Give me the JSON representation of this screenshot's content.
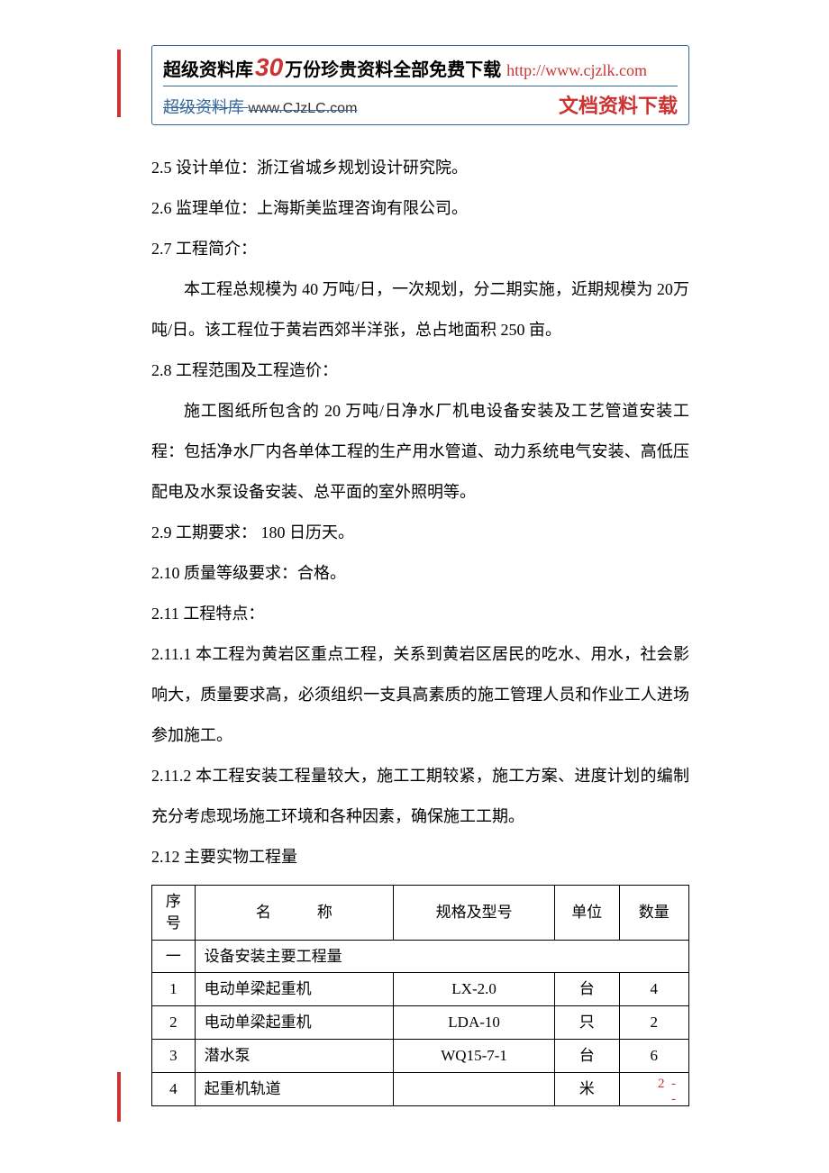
{
  "header": {
    "brand": "超级资料库",
    "big_number": "30",
    "line1_rest": "万份珍贵资料全部免费下载",
    "link": "http://www.cjzlk.com",
    "line2_left_brand": "超级资料库",
    "line2_left_url": "www.CJzLC.com",
    "line2_right": "文档资料下载"
  },
  "body": {
    "p1": "2.5 设计单位：浙江省城乡规划设计研究院。",
    "p2": "2.6 监理单位：上海斯美监理咨询有限公司。",
    "p3": "2.7 工程简介：",
    "p4": "本工程总规模为 40 万吨/日，一次规划，分二期实施，近期规模为 20万吨/日。该工程位于黄岩西郊半洋张，总占地面积 250 亩。",
    "p5": "2.8 工程范围及工程造价：",
    "p6": "施工图纸所包含的 20 万吨/日净水厂机电设备安装及工艺管道安装工程：包括净水厂内各单体工程的生产用水管道、动力系统电气安装、高低压配电及水泵设备安装、总平面的室外照明等。",
    "p7": "2.9 工期要求：  180 日历天。",
    "p8": "2.10 质量等级要求：合格。",
    "p9": "2.11 工程特点：",
    "p10": "2.11.1 本工程为黄岩区重点工程，关系到黄岩区居民的吃水、用水，社会影响大，质量要求高，必须组织一支具高素质的施工管理人员和作业工人进场参加施工。",
    "p11": "2.11.2 本工程安装工程量较大，施工工期较紧，施工方案、进度计划的编制充分考虑现场施工环境和各种因素，确保施工工期。",
    "p12": "2.12 主要实物工程量"
  },
  "table": {
    "headers": {
      "seq": "序号",
      "name": "名",
      "name2": "称",
      "spec": "规格及型号",
      "unit": "单位",
      "qty": "数量"
    },
    "section_row_seq": "一",
    "section_row_label": "设备安装主要工程量",
    "rows": [
      {
        "seq": "1",
        "name": "电动单梁起重机",
        "spec": "LX-2.0",
        "unit": "台",
        "qty": "4"
      },
      {
        "seq": "2",
        "name": "电动单梁起重机",
        "spec": "LDA-10",
        "unit": "只",
        "qty": "2"
      },
      {
        "seq": "3",
        "name": "潜水泵",
        "spec": "WQ15-7-1",
        "unit": "台",
        "qty": "6"
      },
      {
        "seq": "4",
        "name": "起重机轨道",
        "spec": "",
        "unit": "米",
        "qty": ""
      }
    ]
  },
  "footer": {
    "page_num": "2",
    "dash": "-",
    "dash2": "-"
  }
}
